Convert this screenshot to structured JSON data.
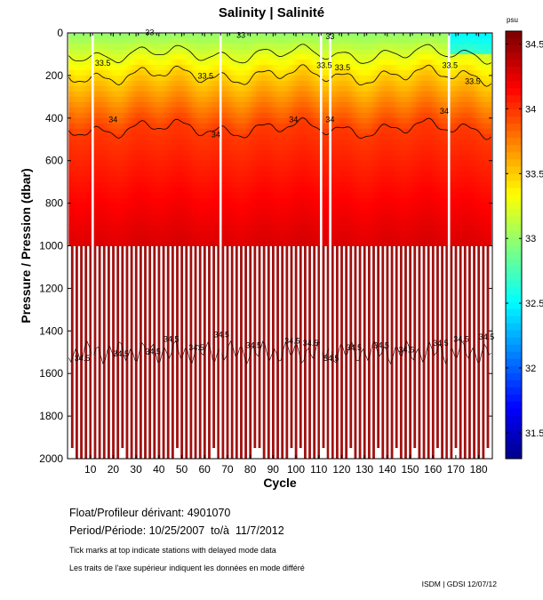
{
  "title": "Salinity | Salinité",
  "chart_data": {
    "type": "heatmap",
    "title": "Salinity | Salinité",
    "xlabel": "Cycle",
    "ylabel": "Pressure / Pression (dbar)",
    "xlim": [
      0,
      186
    ],
    "ylim": [
      2000,
      0
    ],
    "x_ticks": [
      10,
      20,
      30,
      40,
      50,
      60,
      70,
      80,
      90,
      100,
      110,
      120,
      130,
      140,
      150,
      160,
      170,
      180
    ],
    "y_ticks": [
      0,
      200,
      400,
      600,
      800,
      1000,
      1200,
      1400,
      1600,
      1800,
      2000
    ],
    "colorbar": {
      "unit": "psu",
      "ticks": [
        "31.5",
        "32",
        "32.5",
        "33",
        "33.5",
        "34",
        "34.5"
      ],
      "range": [
        31.3,
        34.6
      ]
    },
    "contour_levels": [
      33,
      33.5,
      34,
      34.5
    ],
    "contour_labels": [
      {
        "text": "33",
        "cycle": 34,
        "pressure": 10
      },
      {
        "text": "33",
        "cycle": 74,
        "pressure": 22
      },
      {
        "text": "33",
        "cycle": 113,
        "pressure": 30
      },
      {
        "text": "33.5",
        "cycle": 12,
        "pressure": 155
      },
      {
        "text": "33.5",
        "cycle": 57,
        "pressure": 215
      },
      {
        "text": "33.5",
        "cycle": 109,
        "pressure": 165
      },
      {
        "text": "33.5",
        "cycle": 117,
        "pressure": 175
      },
      {
        "text": "33.5",
        "cycle": 164,
        "pressure": 165
      },
      {
        "text": "33.5",
        "cycle": 174,
        "pressure": 240
      },
      {
        "text": "34",
        "cycle": 18,
        "pressure": 420
      },
      {
        "text": "34",
        "cycle": 63,
        "pressure": 490
      },
      {
        "text": "34",
        "cycle": 97,
        "pressure": 420
      },
      {
        "text": "34",
        "cycle": 113,
        "pressure": 420
      },
      {
        "text": "34",
        "cycle": 163,
        "pressure": 380
      },
      {
        "text": "34.5",
        "cycle": 3,
        "pressure": 1540
      },
      {
        "text": "34.5",
        "cycle": 20,
        "pressure": 1520
      },
      {
        "text": "34.5",
        "cycle": 34,
        "pressure": 1510
      },
      {
        "text": "34.5",
        "cycle": 42,
        "pressure": 1450
      },
      {
        "text": "34.5",
        "cycle": 53,
        "pressure": 1490
      },
      {
        "text": "34.5",
        "cycle": 64,
        "pressure": 1430
      },
      {
        "text": "34.5",
        "cycle": 78,
        "pressure": 1480
      },
      {
        "text": "34.5",
        "cycle": 95,
        "pressure": 1460
      },
      {
        "text": "34.5",
        "cycle": 103,
        "pressure": 1470
      },
      {
        "text": "34.5",
        "cycle": 112,
        "pressure": 1540
      },
      {
        "text": "34.5",
        "cycle": 122,
        "pressure": 1490
      },
      {
        "text": "34.5",
        "cycle": 134,
        "pressure": 1480
      },
      {
        "text": "34.5",
        "cycle": 145,
        "pressure": 1500
      },
      {
        "text": "34.5",
        "cycle": 160,
        "pressure": 1470
      },
      {
        "text": "34.5",
        "cycle": 169,
        "pressure": 1450
      },
      {
        "text": "34.5",
        "cycle": 180,
        "pressure": 1440
      }
    ],
    "gaps_cycles": [
      11,
      67,
      111,
      115,
      167
    ],
    "grid": false
  },
  "float_label": "Float/Profileur dérivant:",
  "float_id": "4901070",
  "period_label": "Period/Période:",
  "period_value": "10/25/2007  to/à  11/7/2012",
  "note_en": "Tick marks at top indicate stations with delayed mode data",
  "note_fr": "Les traits de l'axe supérieur indiquent les données en mode différé",
  "footer": "ISDM | GDSI  12/07/12"
}
